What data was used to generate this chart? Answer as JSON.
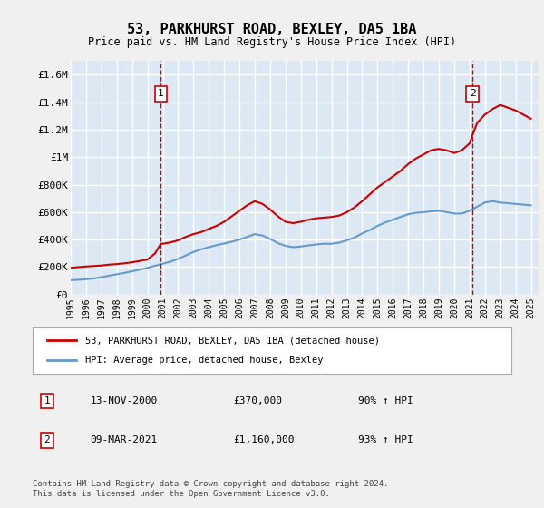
{
  "title": "53, PARKHURST ROAD, BEXLEY, DA5 1BA",
  "subtitle": "Price paid vs. HM Land Registry's House Price Index (HPI)",
  "background_color": "#dce9f5",
  "plot_bg_color": "#dce9f5",
  "grid_color": "#ffffff",
  "ylim": [
    0,
    1700000
  ],
  "xlim": [
    1995,
    2025.5
  ],
  "yticks": [
    0,
    200000,
    400000,
    600000,
    800000,
    1000000,
    1200000,
    1400000,
    1600000
  ],
  "ytick_labels": [
    "£0",
    "£200K",
    "£400K",
    "£600K",
    "£800K",
    "£1M",
    "£1.2M",
    "£1.4M",
    "£1.6M"
  ],
  "xtick_years": [
    1995,
    1996,
    1997,
    1998,
    1999,
    2000,
    2001,
    2002,
    2003,
    2004,
    2005,
    2006,
    2007,
    2008,
    2009,
    2010,
    2011,
    2012,
    2013,
    2014,
    2015,
    2016,
    2017,
    2018,
    2019,
    2020,
    2021,
    2022,
    2023,
    2024,
    2025
  ],
  "red_line_color": "#cc0000",
  "blue_line_color": "#6699cc",
  "vline_color": "#cc0000",
  "transaction1_x": 2000.87,
  "transaction1_y": 370000,
  "transaction2_x": 2021.19,
  "transaction2_y": 1160000,
  "legend_label_red": "53, PARKHURST ROAD, BEXLEY, DA5 1BA (detached house)",
  "legend_label_blue": "HPI: Average price, detached house, Bexley",
  "table_rows": [
    {
      "num": "1",
      "date": "13-NOV-2000",
      "price": "£370,000",
      "hpi": "90% ↑ HPI"
    },
    {
      "num": "2",
      "date": "09-MAR-2021",
      "price": "£1,160,000",
      "hpi": "93% ↑ HPI"
    }
  ],
  "footer": "Contains HM Land Registry data © Crown copyright and database right 2024.\nThis data is licensed under the Open Government Licence v3.0.",
  "red_x": [
    1995.0,
    1995.5,
    1996.0,
    1996.5,
    1997.0,
    1997.5,
    1998.0,
    1998.5,
    1999.0,
    1999.5,
    2000.0,
    2000.5,
    2000.87,
    2001.0,
    2001.5,
    2002.0,
    2002.5,
    2003.0,
    2003.5,
    2004.0,
    2004.5,
    2005.0,
    2005.5,
    2006.0,
    2006.5,
    2007.0,
    2007.5,
    2008.0,
    2008.5,
    2009.0,
    2009.5,
    2010.0,
    2010.5,
    2011.0,
    2011.5,
    2012.0,
    2012.5,
    2013.0,
    2013.5,
    2014.0,
    2014.5,
    2015.0,
    2015.5,
    2016.0,
    2016.5,
    2017.0,
    2017.5,
    2018.0,
    2018.5,
    2019.0,
    2019.5,
    2020.0,
    2020.5,
    2021.0,
    2021.19,
    2021.5,
    2022.0,
    2022.5,
    2023.0,
    2023.5,
    2024.0,
    2024.5,
    2025.0
  ],
  "red_y": [
    195000,
    200000,
    205000,
    208000,
    212000,
    218000,
    222000,
    228000,
    235000,
    245000,
    255000,
    300000,
    370000,
    370000,
    380000,
    395000,
    420000,
    440000,
    455000,
    478000,
    500000,
    530000,
    570000,
    610000,
    650000,
    680000,
    660000,
    620000,
    570000,
    530000,
    520000,
    530000,
    545000,
    555000,
    560000,
    565000,
    575000,
    600000,
    635000,
    680000,
    730000,
    780000,
    820000,
    860000,
    900000,
    950000,
    990000,
    1020000,
    1050000,
    1060000,
    1050000,
    1030000,
    1050000,
    1100000,
    1160000,
    1250000,
    1310000,
    1350000,
    1380000,
    1360000,
    1340000,
    1310000,
    1280000
  ],
  "blue_x": [
    1995.0,
    1995.5,
    1996.0,
    1996.5,
    1997.0,
    1997.5,
    1998.0,
    1998.5,
    1999.0,
    1999.5,
    2000.0,
    2000.5,
    2001.0,
    2001.5,
    2002.0,
    2002.5,
    2003.0,
    2003.5,
    2004.0,
    2004.5,
    2005.0,
    2005.5,
    2006.0,
    2006.5,
    2007.0,
    2007.5,
    2008.0,
    2008.5,
    2009.0,
    2009.5,
    2010.0,
    2010.5,
    2011.0,
    2011.5,
    2012.0,
    2012.5,
    2013.0,
    2013.5,
    2014.0,
    2014.5,
    2015.0,
    2015.5,
    2016.0,
    2016.5,
    2017.0,
    2017.5,
    2018.0,
    2018.5,
    2019.0,
    2019.5,
    2020.0,
    2020.5,
    2021.0,
    2021.5,
    2022.0,
    2022.5,
    2023.0,
    2023.5,
    2024.0,
    2024.5,
    2025.0
  ],
  "blue_y": [
    105000,
    108000,
    112000,
    118000,
    127000,
    138000,
    148000,
    158000,
    170000,
    182000,
    195000,
    210000,
    225000,
    240000,
    260000,
    285000,
    310000,
    330000,
    345000,
    360000,
    372000,
    385000,
    400000,
    420000,
    440000,
    430000,
    405000,
    375000,
    355000,
    345000,
    350000,
    358000,
    365000,
    370000,
    370000,
    378000,
    395000,
    415000,
    445000,
    470000,
    500000,
    525000,
    545000,
    565000,
    585000,
    595000,
    600000,
    605000,
    610000,
    600000,
    590000,
    590000,
    610000,
    640000,
    670000,
    680000,
    670000,
    665000,
    660000,
    655000,
    650000
  ]
}
